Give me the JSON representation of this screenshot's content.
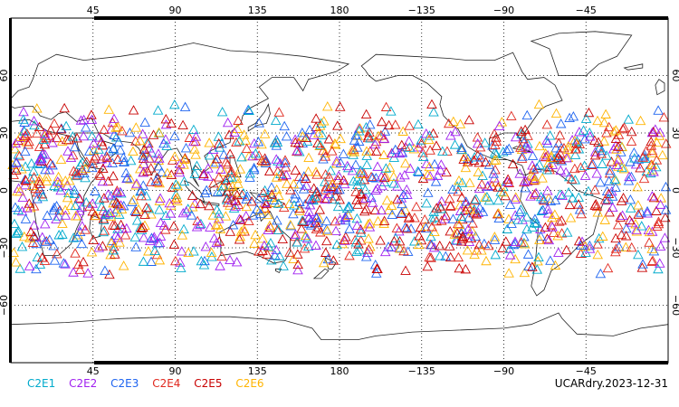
{
  "map": {
    "top_lon_labels": [
      "45",
      "90",
      "135",
      "180",
      "−135",
      "−90",
      "−45"
    ],
    "bottom_lon_labels": [
      "45",
      "90",
      "135",
      "180",
      "−135",
      "−90",
      "−45"
    ],
    "lat_labels_left": [
      "60",
      "30",
      "0",
      "−30",
      "−60"
    ],
    "lat_labels_right": [
      "60",
      "30",
      "0",
      "−30",
      "−60"
    ],
    "lon_range": [
      0,
      360
    ],
    "lat_range": [
      -90,
      90
    ],
    "marker_shape": "triangle-outline",
    "marker_lat_range": [
      -46,
      46
    ],
    "grid": "dotted"
  },
  "legend": {
    "items": [
      {
        "label": "C2E1",
        "color": "#00aacc"
      },
      {
        "label": "C2E2",
        "color": "#a020f0"
      },
      {
        "label": "C2E3",
        "color": "#1e64f0"
      },
      {
        "label": "C2E4",
        "color": "#e0281e"
      },
      {
        "label": "C2E5",
        "color": "#c80000"
      },
      {
        "label": "C2E6",
        "color": "#ffb400"
      }
    ]
  },
  "stamp": "UCARdry.2023-12-31"
}
